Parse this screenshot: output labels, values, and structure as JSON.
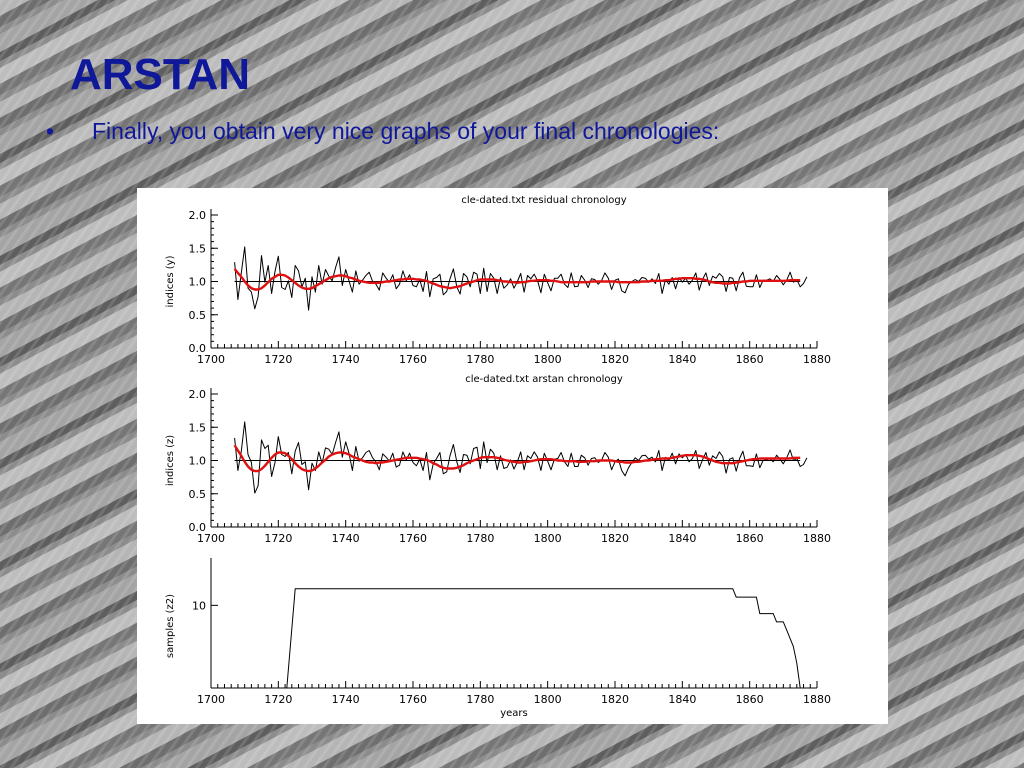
{
  "slide": {
    "title": "ARSTAN",
    "bullet_symbol": "•",
    "bullet_text": "Finally, you obtain very nice graphs of your final chronologies:"
  },
  "colors": {
    "title_text": "#10189a",
    "smooth_line": "#e01010",
    "series_line": "#000000",
    "figure_bg": "#ffffff"
  },
  "chart_data": [
    {
      "type": "line",
      "title": "cle-dated.txt residual chronology",
      "xlabel": "",
      "ylabel": "indices (y)",
      "xlim": [
        1700,
        1880
      ],
      "ylim": [
        0,
        2
      ],
      "x_ticks": [
        1700,
        1720,
        1740,
        1760,
        1780,
        1800,
        1820,
        1840,
        1860,
        1880
      ],
      "y_ticks": [
        "0.0",
        "0.5",
        "1.0",
        "1.5",
        "2.0"
      ],
      "reference_line": 1.0,
      "start_year": 1707,
      "end_year": 1875,
      "series": [
        {
          "name": "",
          "color": "#000000",
          "values": [
            1.29,
            0.73,
            1.13,
            1.52,
            0.9,
            0.84,
            0.59,
            0.77,
            1.39,
            0.99,
            1.24,
            0.82,
            1.15,
            1.38,
            0.91,
            0.88,
            1.01,
            0.76,
            1.24,
            1.16,
            0.92,
            1.05,
            0.57,
            1.07,
            0.84,
            1.24,
            0.96,
            1.18,
            1.08,
            1.01,
            1.21,
            1.37,
            0.94,
            1.18,
            1.01,
            0.84,
            1.16,
            0.96,
            1.02,
            1.09,
            1.14,
            1.0,
            0.96,
            0.87,
            1.13,
            1.05,
            0.99,
            1.1,
            0.89,
            0.96,
            1.16,
            1.01,
            1.1,
            0.94,
            0.92,
            1.03,
            0.85,
            1.15,
            0.77,
            1.04,
            1.06,
            1.11,
            0.8,
            0.85,
            1.04,
            1.19,
            0.92,
            0.81,
            1.12,
            1.07,
            0.92,
            1.14,
            1.11,
            0.82,
            1.2,
            0.85,
            1.12,
            1.05,
            0.82,
            1.06,
            0.9,
            0.95,
            1.04,
            0.9,
            1.0,
            1.12,
            0.84,
            1.09,
            1.04,
            1.11,
            1.01,
            0.83,
            1.11,
            0.98,
            0.86,
            1.05,
            1.05,
            1.11,
            0.96,
            0.91,
            1.13,
            0.92,
            0.93,
            1.09,
            1.02,
            0.91,
            1.04,
            1.03,
            0.96,
            1.01,
            1.13,
            1.05,
            0.88,
            1.02,
            1.04,
            0.86,
            0.83,
            0.96,
            1.0,
            1.03,
            1.0,
            1.06,
            1.05,
            0.99,
            1.04,
            0.97,
            1.12,
            0.82,
            1.03,
            0.96,
            1.06,
            0.89,
            1.06,
            0.99,
            1.05,
            0.96,
            1.02,
            1.13,
            0.87,
            1.03,
            1.13,
            0.94,
            1.08,
            1.05,
            1.12,
            1.07,
            0.85,
            1.06,
            1.05,
            0.86,
            1.06,
            1.14,
            0.93,
            0.92,
            0.92,
            1.1,
            0.91,
            1.02,
            1.02,
            1.04,
            1.0,
            1.09,
            1.03,
            0.95,
            1.02,
            1.14,
            0.99,
            1.03,
            0.92,
            0.97,
            1.07
          ]
        },
        {
          "name": "",
          "color": "#e01010",
          "values": [
            1.19,
            1.13,
            1.07,
            1.0,
            0.94,
            0.9,
            0.88,
            0.88,
            0.9,
            0.94,
            0.99,
            1.04,
            1.07,
            1.1,
            1.1,
            1.09,
            1.06,
            1.02,
            0.98,
            0.94,
            0.91,
            0.89,
            0.89,
            0.9,
            0.93,
            0.96,
            0.99,
            1.02,
            1.05,
            1.07,
            1.08,
            1.09,
            1.09,
            1.08,
            1.06,
            1.05,
            1.03,
            1.01,
            1.0,
            0.99,
            0.98,
            0.98,
            0.98,
            0.98,
            0.99,
            1.0,
            1.0,
            1.01,
            1.02,
            1.03,
            1.03,
            1.04,
            1.04,
            1.04,
            1.03,
            1.03,
            1.02,
            1.01,
            0.99,
            0.97,
            0.95,
            0.93,
            0.92,
            0.91,
            0.9,
            0.91,
            0.92,
            0.93,
            0.95,
            0.97,
            0.99,
            1.0,
            1.02,
            1.03,
            1.03,
            1.03,
            1.03,
            1.03,
            1.02,
            1.01,
            1.0,
            1.0,
            0.99,
            0.99,
            0.98,
            0.99,
            0.99,
            1.0,
            1.01,
            1.01,
            1.02,
            1.02,
            1.02,
            1.02,
            1.01,
            1.01,
            1.0,
            0.99,
            0.99,
            0.99,
            0.99,
            0.99,
            0.99,
            0.99,
            0.99,
            0.99,
            1.0,
            1.0,
            1.0,
            1.0,
            1.0,
            1.0,
            1.0,
            1.0,
            0.99,
            0.99,
            0.99,
            0.99,
            0.99,
            0.99,
            0.99,
            1.0,
            1.0,
            1.0,
            1.01,
            1.01,
            1.01,
            1.01,
            1.02,
            1.02,
            1.03,
            1.04,
            1.04,
            1.05,
            1.05,
            1.05,
            1.05,
            1.04,
            1.04,
            1.03,
            1.02,
            1.0,
            0.99,
            0.98,
            0.98,
            0.97,
            0.97,
            0.97,
            0.98,
            0.98,
            0.99,
            1.0,
            1.0,
            1.01,
            1.01,
            1.01,
            1.01,
            1.01,
            1.01,
            1.01,
            1.01,
            1.01,
            1.01,
            1.01,
            1.01,
            1.02,
            1.02,
            1.02,
            1.02
          ]
        }
      ]
    },
    {
      "type": "line",
      "title": "cle-dated.txt arstan chronology",
      "xlabel": "",
      "ylabel": "indices (z)",
      "xlim": [
        1700,
        1880
      ],
      "ylim": [
        0,
        2
      ],
      "x_ticks": [
        1700,
        1720,
        1740,
        1760,
        1780,
        1800,
        1820,
        1840,
        1860,
        1880
      ],
      "y_ticks": [
        "0.0",
        "0.5",
        "1.0",
        "1.5",
        "2.0"
      ],
      "reference_line": 1.0,
      "start_year": 1707,
      "end_year": 1875,
      "series": [
        {
          "name": "",
          "color": "#000000",
          "values": [
            1.34,
            0.85,
            1.14,
            1.58,
            1.09,
            0.97,
            0.51,
            0.62,
            1.31,
            1.18,
            1.23,
            0.76,
            0.97,
            1.36,
            1.09,
            1.06,
            1.12,
            0.8,
            1.14,
            1.27,
            0.94,
            0.98,
            0.56,
            0.96,
            0.85,
            1.13,
            0.96,
            1.19,
            1.17,
            1.09,
            1.27,
            1.43,
            1.05,
            1.28,
            1.11,
            0.85,
            1.21,
            0.99,
            1.04,
            1.12,
            1.15,
            1.04,
            0.98,
            0.86,
            1.1,
            1.05,
            0.99,
            1.11,
            0.9,
            0.93,
            1.13,
            1.01,
            1.11,
            0.97,
            0.92,
            1.02,
            0.85,
            1.12,
            0.71,
            0.95,
            1.03,
            1.12,
            0.8,
            0.83,
            1.07,
            1.24,
            0.98,
            0.82,
            1.09,
            1.08,
            0.95,
            1.18,
            1.2,
            0.88,
            1.28,
            0.97,
            1.17,
            1.11,
            0.86,
            1.07,
            0.88,
            0.9,
            1.01,
            0.87,
            0.98,
            1.13,
            0.86,
            1.07,
            1.03,
            1.13,
            1.05,
            0.85,
            1.11,
            0.99,
            0.86,
            1.02,
            1.03,
            1.12,
            0.98,
            0.91,
            1.11,
            0.91,
            0.91,
            1.08,
            1.04,
            0.93,
            1.03,
            1.04,
            0.97,
            1.0,
            1.12,
            1.05,
            0.86,
            0.98,
            1.02,
            0.85,
            0.77,
            0.89,
            0.97,
            1.04,
            1.0,
            1.07,
            1.08,
            1.02,
            1.05,
            0.98,
            1.15,
            0.85,
            1.05,
            1.0,
            1.11,
            0.95,
            1.1,
            1.04,
            1.09,
            0.98,
            1.03,
            1.15,
            0.88,
            1.01,
            1.12,
            0.93,
            1.07,
            1.03,
            1.13,
            1.06,
            0.81,
            1.02,
            1.04,
            0.84,
            1.03,
            1.14,
            0.92,
            0.92,
            0.91,
            1.1,
            0.89,
            1.0,
            1.01,
            1.03,
            0.98,
            1.08,
            1.02,
            0.95,
            1.04,
            1.16,
            1.0,
            1.03,
            0.91,
            0.94,
            1.04
          ]
        },
        {
          "name": "",
          "color": "#e01010",
          "values": [
            1.23,
            1.15,
            1.07,
            0.98,
            0.91,
            0.86,
            0.84,
            0.84,
            0.87,
            0.92,
            0.98,
            1.04,
            1.09,
            1.12,
            1.12,
            1.11,
            1.07,
            1.02,
            0.96,
            0.91,
            0.87,
            0.85,
            0.84,
            0.85,
            0.88,
            0.92,
            0.97,
            1.01,
            1.06,
            1.09,
            1.11,
            1.12,
            1.12,
            1.11,
            1.09,
            1.06,
            1.04,
            1.02,
            1.0,
            0.98,
            0.97,
            0.97,
            0.96,
            0.97,
            0.97,
            0.98,
            0.99,
            1.0,
            1.01,
            1.02,
            1.03,
            1.04,
            1.04,
            1.04,
            1.04,
            1.03,
            1.02,
            1.01,
            0.99,
            0.96,
            0.94,
            0.91,
            0.89,
            0.88,
            0.88,
            0.88,
            0.89,
            0.91,
            0.93,
            0.96,
            0.98,
            1.0,
            1.02,
            1.04,
            1.05,
            1.05,
            1.05,
            1.05,
            1.04,
            1.03,
            1.01,
            1.0,
            0.99,
            0.98,
            0.97,
            0.97,
            0.98,
            0.98,
            0.99,
            1.0,
            1.01,
            1.02,
            1.02,
            1.02,
            1.02,
            1.01,
            1.0,
            1.0,
            0.99,
            0.99,
            0.99,
            0.99,
            0.98,
            0.98,
            0.98,
            0.99,
            0.99,
            0.99,
            1.0,
            1.0,
            1.0,
            1.0,
            1.0,
            0.99,
            0.98,
            0.98,
            0.97,
            0.97,
            0.97,
            0.98,
            0.98,
            0.99,
            1.0,
            1.0,
            1.01,
            1.02,
            1.02,
            1.03,
            1.03,
            1.03,
            1.04,
            1.05,
            1.06,
            1.07,
            1.08,
            1.08,
            1.08,
            1.08,
            1.07,
            1.06,
            1.04,
            1.02,
            1.0,
            0.98,
            0.97,
            0.96,
            0.96,
            0.96,
            0.96,
            0.97,
            0.98,
            0.99,
            1.0,
            1.01,
            1.02,
            1.02,
            1.03,
            1.03,
            1.03,
            1.03,
            1.03,
            1.03,
            1.03,
            1.03,
            1.03,
            1.03,
            1.04,
            1.04,
            1.04
          ]
        }
      ]
    },
    {
      "type": "line",
      "title": "",
      "xlabel": "years",
      "ylabel": "samples (z2)",
      "xlim": [
        1700,
        1880
      ],
      "ylim": [
        0,
        15
      ],
      "x_ticks": [
        1700,
        1720,
        1740,
        1760,
        1780,
        1800,
        1820,
        1840,
        1860,
        1880
      ],
      "y_ticks": [
        "10"
      ],
      "y_tick_values": [
        10
      ],
      "series": [
        {
          "name": "",
          "color": "#000000",
          "x": [
            1722.5,
            1725,
            1855,
            1856,
            1862,
            1863,
            1867,
            1868,
            1870,
            1871,
            1872,
            1873,
            1874,
            1875
          ],
          "values": [
            0,
            12,
            12,
            11,
            11,
            9,
            9,
            8,
            8,
            7,
            6,
            5,
            3,
            0
          ]
        }
      ]
    }
  ]
}
